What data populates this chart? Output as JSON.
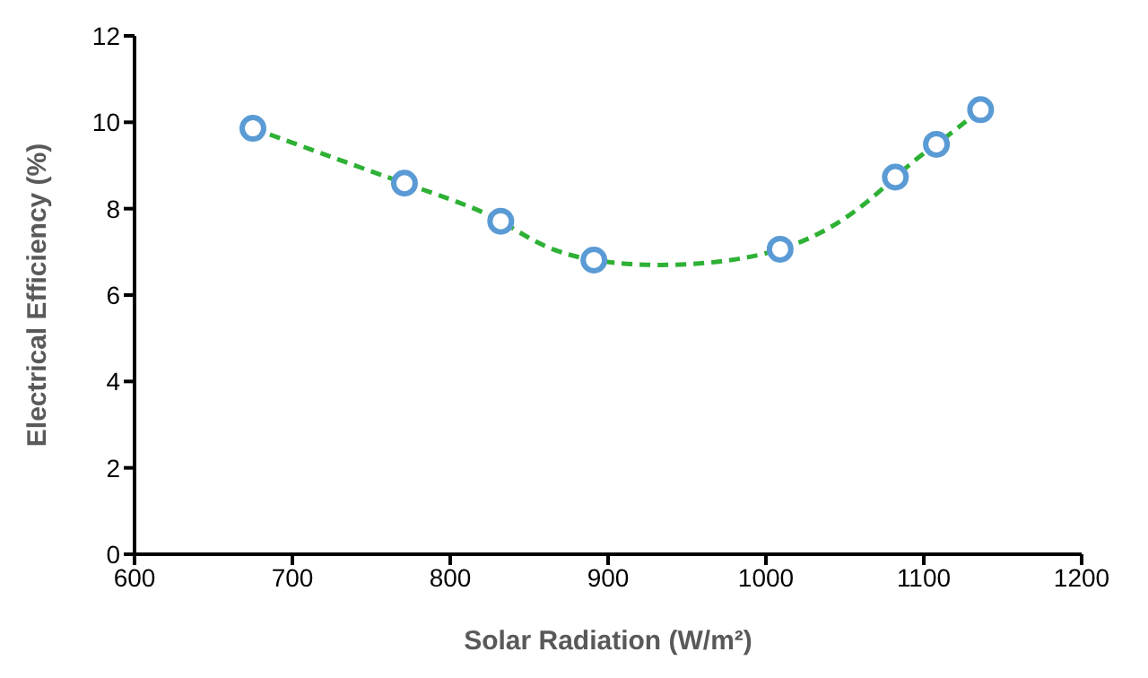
{
  "chart_data": {
    "type": "scatter",
    "xlabel": "Solar Radiation (W/m²)",
    "ylabel": "Electrical Efficiency (%)",
    "xlim": [
      600,
      1200
    ],
    "xticks": [
      600,
      700,
      800,
      900,
      1000,
      1100,
      1200
    ],
    "ylim": [
      0,
      12
    ],
    "yticks": [
      0,
      2,
      4,
      6,
      8,
      10,
      12
    ],
    "grid": false,
    "series": [
      {
        "type": "line",
        "color": "#2eb135",
        "line_style": "dashed",
        "marker": "none",
        "x": [
          675,
          771,
          832,
          891,
          1009,
          1082,
          1108,
          1136
        ],
        "values": [
          9.86,
          8.59,
          7.71,
          6.81,
          7.06,
          8.73,
          9.49,
          10.29
        ]
      },
      {
        "type": "scatter",
        "color": "#5b9bd5",
        "marker": "circle",
        "x": [
          675,
          771,
          832,
          891,
          1009,
          1082,
          1108,
          1136
        ],
        "values": [
          9.86,
          8.59,
          7.71,
          6.81,
          7.06,
          8.73,
          9.49,
          10.29
        ]
      }
    ]
  }
}
